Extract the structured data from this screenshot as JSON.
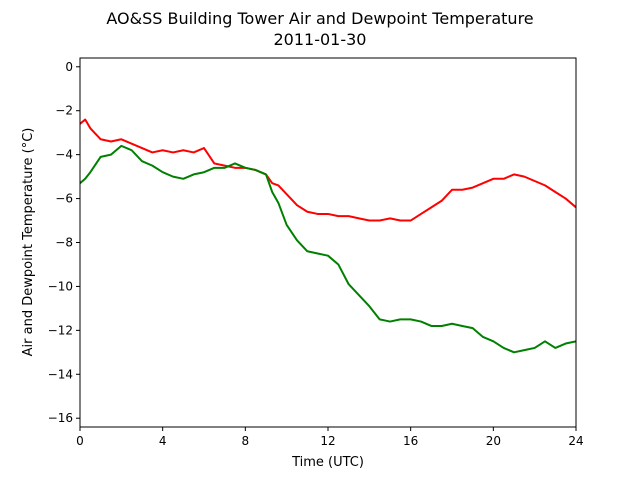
{
  "chart_data": {
    "type": "line",
    "title": "AO&SS Building Tower Air and Dewpoint Temperature",
    "subtitle": "2011-01-30",
    "xlabel": "Time (UTC)",
    "ylabel": "Air and Dewpoint Temperature (°C)",
    "xlim": [
      0,
      24
    ],
    "ylim": [
      -16.4,
      0.4
    ],
    "x_ticks": [
      0,
      4,
      8,
      12,
      16,
      20,
      24
    ],
    "y_ticks": [
      0,
      -2,
      -4,
      -6,
      -8,
      -10,
      -12,
      -14,
      -16
    ],
    "grid": false,
    "legend": "none",
    "series": [
      {
        "color": "#ff0000",
        "x": [
          0,
          0.25,
          0.5,
          1,
          1.5,
          2,
          2.5,
          3,
          3.5,
          4,
          4.5,
          5,
          5.5,
          6,
          6.5,
          7,
          7.5,
          8,
          8.5,
          9,
          9.3,
          9.6,
          10,
          10.5,
          11,
          11.5,
          12,
          12.5,
          13,
          13.5,
          14,
          14.5,
          15,
          15.5,
          16,
          16.5,
          17,
          17.5,
          18,
          18.5,
          19,
          19.5,
          20,
          20.5,
          21,
          21.5,
          22,
          22.5,
          23,
          23.5,
          24
        ],
        "y": [
          -2.6,
          -2.4,
          -2.8,
          -3.3,
          -3.4,
          -3.3,
          -3.5,
          -3.7,
          -3.9,
          -3.8,
          -3.9,
          -3.8,
          -3.9,
          -3.7,
          -4.4,
          -4.5,
          -4.6,
          -4.6,
          -4.7,
          -4.9,
          -5.3,
          -5.4,
          -5.8,
          -6.3,
          -6.6,
          -6.7,
          -6.7,
          -6.8,
          -6.8,
          -6.9,
          -7.0,
          -7.0,
          -6.9,
          -7.0,
          -7.0,
          -6.7,
          -6.4,
          -6.1,
          -5.6,
          -5.6,
          -5.5,
          -5.3,
          -5.1,
          -5.1,
          -4.9,
          -5.0,
          -5.2,
          -5.4,
          -5.7,
          -6.0,
          -6.4
        ]
      },
      {
        "color": "#008000",
        "x": [
          0,
          0.25,
          0.5,
          1,
          1.5,
          2,
          2.5,
          3,
          3.5,
          4,
          4.5,
          5,
          5.5,
          6,
          6.5,
          7,
          7.5,
          8,
          8.5,
          9,
          9.3,
          9.6,
          10,
          10.5,
          11,
          11.5,
          12,
          12.5,
          13,
          13.5,
          14,
          14.5,
          15,
          15.5,
          16,
          16.5,
          17,
          17.5,
          18,
          18.5,
          19,
          19.5,
          20,
          20.5,
          21,
          21.5,
          22,
          22.5,
          23,
          23.5,
          24
        ],
        "y": [
          -5.3,
          -5.1,
          -4.8,
          -4.1,
          -4.0,
          -3.6,
          -3.8,
          -4.3,
          -4.5,
          -4.8,
          -5.0,
          -5.1,
          -4.9,
          -4.8,
          -4.6,
          -4.6,
          -4.4,
          -4.6,
          -4.7,
          -4.9,
          -5.7,
          -6.2,
          -7.2,
          -7.9,
          -8.4,
          -8.5,
          -8.6,
          -9.0,
          -9.9,
          -10.4,
          -10.9,
          -11.5,
          -11.6,
          -11.5,
          -11.5,
          -11.6,
          -11.8,
          -11.8,
          -11.7,
          -11.8,
          -11.9,
          -12.3,
          -12.5,
          -12.8,
          -13.0,
          -12.9,
          -12.8,
          -12.5,
          -12.8,
          -12.6,
          -12.5
        ]
      }
    ]
  }
}
